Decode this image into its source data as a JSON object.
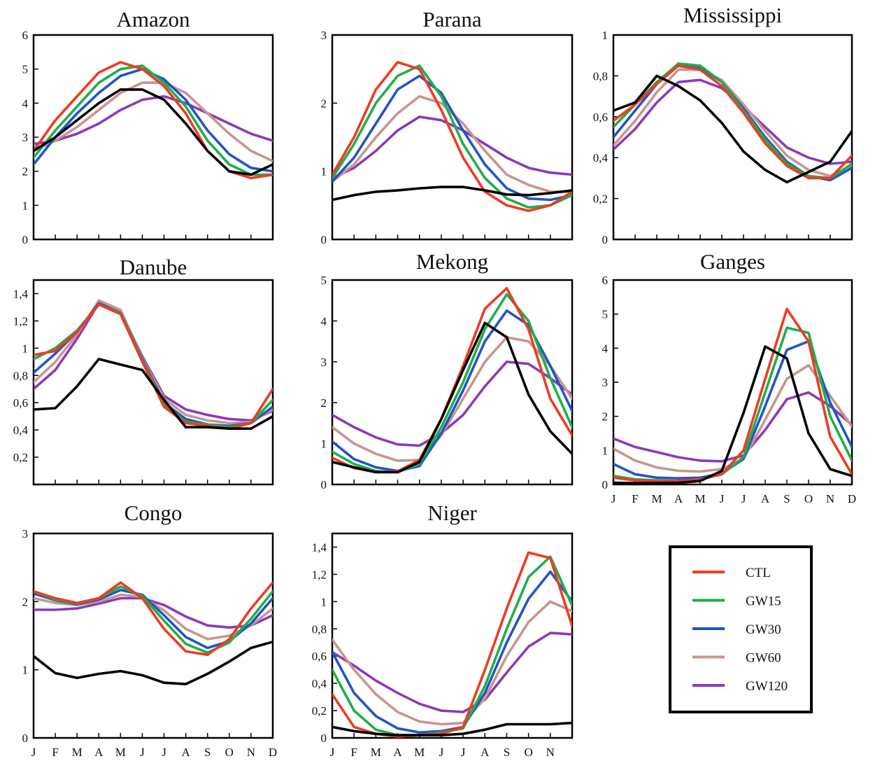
{
  "chart_data": [
    {
      "type": "line",
      "title": "Amazon",
      "ylim": [
        0,
        6
      ],
      "yticks": [
        "0",
        "1",
        "2",
        "3",
        "4",
        "5",
        "6"
      ],
      "show_months": false,
      "x": [
        "J",
        "F",
        "M",
        "A",
        "M",
        "J",
        "J",
        "A",
        "S",
        "O",
        "N",
        "D"
      ],
      "series": [
        {
          "name": "CTL",
          "values": [
            2.6,
            3.5,
            4.2,
            4.9,
            5.2,
            5.0,
            4.5,
            3.7,
            2.6,
            2.0,
            1.8,
            1.9
          ]
        },
        {
          "name": "GW15",
          "values": [
            2.4,
            3.2,
            3.9,
            4.6,
            5.0,
            5.1,
            4.6,
            3.9,
            2.9,
            2.2,
            1.9,
            1.9
          ]
        },
        {
          "name": "GW30",
          "values": [
            2.2,
            3.0,
            3.7,
            4.3,
            4.8,
            5.0,
            4.7,
            4.1,
            3.2,
            2.5,
            2.1,
            2.0
          ]
        },
        {
          "name": "GW60",
          "values": [
            2.6,
            2.9,
            3.3,
            3.8,
            4.3,
            4.6,
            4.6,
            4.3,
            3.7,
            3.1,
            2.6,
            2.3
          ]
        },
        {
          "name": "GW120",
          "values": [
            2.8,
            2.9,
            3.1,
            3.4,
            3.8,
            4.1,
            4.2,
            4.0,
            3.7,
            3.4,
            3.1,
            2.9
          ]
        },
        {
          "name": "",
          "values": [
            2.6,
            3.0,
            3.5,
            4.0,
            4.4,
            4.4,
            4.1,
            3.4,
            2.6,
            2.0,
            1.9,
            2.2
          ]
        }
      ]
    },
    {
      "type": "line",
      "title": "Parana",
      "ylim": [
        0,
        3
      ],
      "yticks": [
        "0",
        "1",
        "2",
        "3"
      ],
      "show_months": false,
      "x": [
        "J",
        "F",
        "M",
        "A",
        "M",
        "J",
        "J",
        "A",
        "S",
        "O",
        "N",
        "D"
      ],
      "series": [
        {
          "name": "CTL",
          "values": [
            0.95,
            1.5,
            2.2,
            2.6,
            2.5,
            1.9,
            1.2,
            0.7,
            0.5,
            0.42,
            0.5,
            0.7
          ]
        },
        {
          "name": "GW15",
          "values": [
            0.9,
            1.4,
            2.0,
            2.4,
            2.55,
            2.1,
            1.4,
            0.9,
            0.6,
            0.47,
            0.5,
            0.65
          ]
        },
        {
          "name": "GW30",
          "values": [
            0.85,
            1.2,
            1.7,
            2.2,
            2.4,
            2.15,
            1.6,
            1.1,
            0.75,
            0.6,
            0.58,
            0.65
          ]
        },
        {
          "name": "GW60",
          "values": [
            0.85,
            1.1,
            1.5,
            1.85,
            2.1,
            2.0,
            1.7,
            1.3,
            0.95,
            0.8,
            0.7,
            0.7
          ]
        },
        {
          "name": "GW120",
          "values": [
            0.9,
            1.05,
            1.3,
            1.6,
            1.8,
            1.75,
            1.6,
            1.4,
            1.2,
            1.05,
            0.98,
            0.95
          ]
        },
        {
          "name": "",
          "values": [
            0.58,
            0.65,
            0.7,
            0.72,
            0.75,
            0.77,
            0.77,
            0.72,
            0.66,
            0.65,
            0.68,
            0.72
          ]
        }
      ]
    },
    {
      "type": "line",
      "title": "Mississippi",
      "ylim": [
        0,
        1
      ],
      "yticks": [
        "0",
        "0,2",
        "0,4",
        "0,6",
        "0,8",
        "1"
      ],
      "show_months": false,
      "x": [
        "J",
        "F",
        "M",
        "A",
        "M",
        "J",
        "J",
        "A",
        "S",
        "O",
        "N",
        "D"
      ],
      "series": [
        {
          "name": "CTL",
          "values": [
            0.58,
            0.66,
            0.76,
            0.85,
            0.83,
            0.75,
            0.62,
            0.47,
            0.36,
            0.3,
            0.3,
            0.41
          ]
        },
        {
          "name": "GW15",
          "values": [
            0.55,
            0.66,
            0.77,
            0.86,
            0.85,
            0.77,
            0.63,
            0.49,
            0.37,
            0.31,
            0.3,
            0.37
          ]
        },
        {
          "name": "GW30",
          "values": [
            0.5,
            0.63,
            0.76,
            0.86,
            0.84,
            0.77,
            0.64,
            0.5,
            0.38,
            0.31,
            0.29,
            0.35
          ]
        },
        {
          "name": "GW60",
          "values": [
            0.46,
            0.58,
            0.72,
            0.83,
            0.83,
            0.78,
            0.66,
            0.53,
            0.41,
            0.34,
            0.31,
            0.36
          ]
        },
        {
          "name": "GW120",
          "values": [
            0.44,
            0.54,
            0.67,
            0.77,
            0.78,
            0.74,
            0.65,
            0.55,
            0.45,
            0.4,
            0.37,
            0.38
          ]
        },
        {
          "name": "",
          "values": [
            0.63,
            0.67,
            0.8,
            0.75,
            0.68,
            0.57,
            0.43,
            0.34,
            0.28,
            0.33,
            0.38,
            0.53
          ]
        }
      ]
    },
    {
      "type": "line",
      "title": "Danube",
      "ylim": [
        0,
        1.5
      ],
      "yticks": [
        "",
        "0,2",
        "0,4",
        "0,6",
        "0,8",
        "1",
        "1,2",
        "1,4"
      ],
      "show_months": false,
      "x": [
        "J",
        "F",
        "M",
        "A",
        "M",
        "J",
        "J",
        "A",
        "S",
        "O",
        "N",
        "D"
      ],
      "series": [
        {
          "name": "CTL",
          "values": [
            0.95,
            0.98,
            1.12,
            1.32,
            1.25,
            0.9,
            0.57,
            0.45,
            0.43,
            0.41,
            0.45,
            0.7
          ]
        },
        {
          "name": "GW15",
          "values": [
            0.92,
            1.0,
            1.13,
            1.32,
            1.26,
            0.91,
            0.59,
            0.46,
            0.44,
            0.42,
            0.45,
            0.62
          ]
        },
        {
          "name": "GW30",
          "values": [
            0.82,
            0.96,
            1.12,
            1.33,
            1.26,
            0.92,
            0.6,
            0.48,
            0.44,
            0.43,
            0.45,
            0.57
          ]
        },
        {
          "name": "GW60",
          "values": [
            0.75,
            0.9,
            1.1,
            1.35,
            1.28,
            0.93,
            0.63,
            0.51,
            0.47,
            0.45,
            0.46,
            0.55
          ]
        },
        {
          "name": "GW120",
          "values": [
            0.7,
            0.84,
            1.07,
            1.33,
            1.27,
            0.94,
            0.65,
            0.55,
            0.51,
            0.48,
            0.47,
            0.54
          ]
        },
        {
          "name": "",
          "values": [
            0.55,
            0.56,
            0.72,
            0.92,
            0.88,
            0.84,
            0.62,
            0.42,
            0.42,
            0.41,
            0.41,
            0.5
          ]
        }
      ]
    },
    {
      "type": "line",
      "title": "Mekong",
      "ylim": [
        0,
        5
      ],
      "yticks": [
        "0",
        "1",
        "2",
        "3",
        "4",
        "5"
      ],
      "show_months": false,
      "x": [
        "J",
        "F",
        "M",
        "A",
        "M",
        "J",
        "J",
        "A",
        "S",
        "O",
        "N",
        "D"
      ],
      "series": [
        {
          "name": "CTL",
          "values": [
            0.65,
            0.4,
            0.3,
            0.32,
            0.6,
            1.6,
            2.9,
            4.3,
            4.8,
            3.8,
            2.1,
            1.2
          ]
        },
        {
          "name": "GW15",
          "values": [
            0.8,
            0.5,
            0.33,
            0.3,
            0.5,
            1.4,
            2.5,
            3.8,
            4.65,
            4.0,
            2.6,
            1.4
          ]
        },
        {
          "name": "GW30",
          "values": [
            1.05,
            0.62,
            0.42,
            0.33,
            0.45,
            1.25,
            2.3,
            3.5,
            4.25,
            3.9,
            2.9,
            1.8
          ]
        },
        {
          "name": "GW60",
          "values": [
            1.4,
            1.0,
            0.75,
            0.58,
            0.6,
            1.2,
            2.1,
            3.0,
            3.6,
            3.5,
            2.9,
            2.1
          ]
        },
        {
          "name": "GW120",
          "values": [
            1.7,
            1.4,
            1.15,
            0.98,
            0.95,
            1.25,
            1.7,
            2.4,
            3.0,
            2.95,
            2.6,
            2.2
          ]
        },
        {
          "name": "",
          "values": [
            0.55,
            0.42,
            0.3,
            0.3,
            0.55,
            1.6,
            2.8,
            3.95,
            3.6,
            2.2,
            1.3,
            0.75
          ]
        }
      ]
    },
    {
      "type": "line",
      "title": "Ganges",
      "ylim": [
        0,
        6
      ],
      "yticks": [
        "0",
        "1",
        "2",
        "3",
        "4",
        "5",
        "6"
      ],
      "show_months": true,
      "x": [
        "J",
        "F",
        "M",
        "A",
        "M",
        "J",
        "J",
        "A",
        "S",
        "O",
        "N",
        "D"
      ],
      "series": [
        {
          "name": "CTL",
          "values": [
            0.2,
            0.12,
            0.1,
            0.1,
            0.15,
            0.3,
            1.0,
            3.1,
            5.15,
            4.2,
            1.4,
            0.3
          ]
        },
        {
          "name": "GW15",
          "values": [
            0.25,
            0.15,
            0.12,
            0.1,
            0.15,
            0.3,
            0.8,
            2.7,
            4.6,
            4.45,
            2.0,
            0.7
          ]
        },
        {
          "name": "GW30",
          "values": [
            0.6,
            0.3,
            0.2,
            0.18,
            0.2,
            0.32,
            0.75,
            2.3,
            3.95,
            4.2,
            2.4,
            1.1
          ]
        },
        {
          "name": "GW60",
          "values": [
            1.05,
            0.7,
            0.5,
            0.4,
            0.38,
            0.45,
            0.75,
            1.9,
            3.1,
            3.5,
            2.6,
            1.7
          ]
        },
        {
          "name": "GW120",
          "values": [
            1.35,
            1.1,
            0.95,
            0.8,
            0.7,
            0.68,
            0.85,
            1.6,
            2.5,
            2.7,
            2.3,
            1.75
          ]
        },
        {
          "name": "",
          "values": [
            0.05,
            0.04,
            0.04,
            0.05,
            0.1,
            0.4,
            2.1,
            4.05,
            3.7,
            1.5,
            0.45,
            0.25
          ]
        }
      ]
    },
    {
      "type": "line",
      "title": "Congo",
      "ylim": [
        0,
        3
      ],
      "yticks": [
        "0",
        "1",
        "2",
        "3"
      ],
      "show_months": true,
      "x": [
        "J",
        "F",
        "M",
        "A",
        "M",
        "J",
        "J",
        "A",
        "S",
        "O",
        "N",
        "D"
      ],
      "series": [
        {
          "name": "CTL",
          "values": [
            2.15,
            2.05,
            1.98,
            2.05,
            2.28,
            2.05,
            1.6,
            1.27,
            1.22,
            1.45,
            1.9,
            2.28
          ]
        },
        {
          "name": "GW15",
          "values": [
            2.15,
            2.03,
            1.97,
            2.05,
            2.22,
            2.08,
            1.72,
            1.38,
            1.25,
            1.4,
            1.75,
            2.15
          ]
        },
        {
          "name": "GW30",
          "values": [
            2.12,
            2.02,
            1.96,
            2.03,
            2.17,
            2.1,
            1.8,
            1.48,
            1.32,
            1.42,
            1.68,
            2.05
          ]
        },
        {
          "name": "GW60",
          "values": [
            2.05,
            1.98,
            1.95,
            2.0,
            2.1,
            2.07,
            1.87,
            1.6,
            1.45,
            1.5,
            1.65,
            1.9
          ]
        },
        {
          "name": "GW120",
          "values": [
            1.88,
            1.88,
            1.9,
            1.97,
            2.05,
            2.05,
            1.95,
            1.78,
            1.65,
            1.62,
            1.65,
            1.8
          ]
        },
        {
          "name": "",
          "values": [
            1.2,
            0.95,
            0.88,
            0.94,
            0.98,
            0.92,
            0.81,
            0.79,
            0.94,
            1.12,
            1.32,
            1.41
          ]
        }
      ]
    },
    {
      "type": "line",
      "title": "Niger",
      "ylim": [
        0,
        1.5
      ],
      "yticks": [
        "0",
        "0,2",
        "0,4",
        "0,6",
        "0,8",
        "1",
        "1,2",
        "1,4"
      ],
      "show_months": true,
      "x": [
        "J",
        "F",
        "M",
        "A",
        "M",
        "J",
        "J",
        "A",
        "S",
        "O",
        "N",
        "D"
      ],
      "series": [
        {
          "name": "CTL",
          "values": [
            0.32,
            0.08,
            0.03,
            0.01,
            0.02,
            0.03,
            0.08,
            0.5,
            0.95,
            1.36,
            1.32,
            0.82
          ]
        },
        {
          "name": "GW15",
          "values": [
            0.5,
            0.2,
            0.06,
            0.02,
            0.02,
            0.04,
            0.07,
            0.38,
            0.8,
            1.18,
            1.33,
            0.97
          ]
        },
        {
          "name": "GW30",
          "values": [
            0.63,
            0.33,
            0.16,
            0.07,
            0.04,
            0.05,
            0.08,
            0.33,
            0.7,
            1.02,
            1.22,
            1.0
          ]
        },
        {
          "name": "GW60",
          "values": [
            0.72,
            0.5,
            0.32,
            0.19,
            0.12,
            0.1,
            0.11,
            0.29,
            0.6,
            0.85,
            1.0,
            0.93
          ]
        },
        {
          "name": "GW120",
          "values": [
            0.63,
            0.53,
            0.42,
            0.33,
            0.25,
            0.2,
            0.19,
            0.28,
            0.48,
            0.67,
            0.77,
            0.76
          ]
        },
        {
          "name": "",
          "values": [
            0.08,
            0.05,
            0.03,
            0.02,
            0.02,
            0.02,
            0.03,
            0.06,
            0.1,
            0.1,
            0.1,
            0.11
          ]
        }
      ]
    }
  ],
  "month_labels": [
    "J",
    "F",
    "M",
    "A",
    "M",
    "J",
    "J",
    "A",
    "S",
    "O",
    "N",
    "D"
  ],
  "legend": {
    "entries": [
      {
        "name": "CTL",
        "color": "#ef3b24"
      },
      {
        "name": "GW15",
        "color": "#1fae4b"
      },
      {
        "name": "GW30",
        "color": "#2255c4"
      },
      {
        "name": "GW60",
        "color": "#c9958f"
      },
      {
        "name": "GW120",
        "color": "#8a3ab9"
      }
    ]
  },
  "colors": {
    "CTL": "#ef3b24",
    "GW15": "#1fae4b",
    "GW30": "#2255c4",
    "GW60": "#c9958f",
    "GW120": "#8a3ab9",
    "observed": "#000000"
  }
}
